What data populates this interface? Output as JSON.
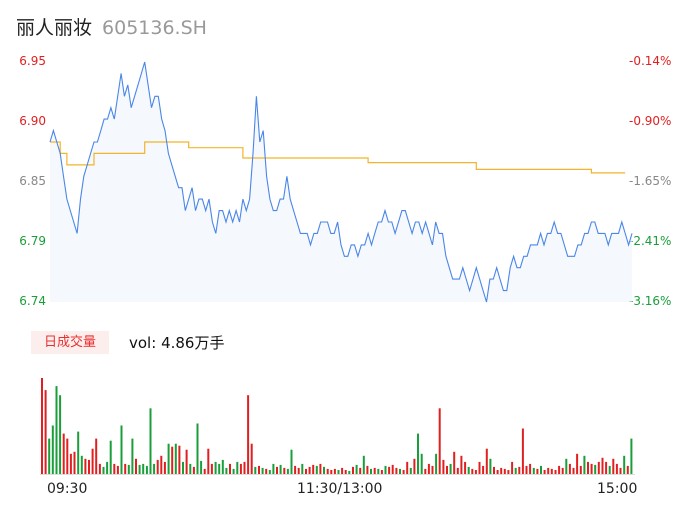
{
  "header": {
    "name": "丽人丽妆",
    "code": "605136.SH"
  },
  "volume_tab": {
    "label": "日成交量",
    "vol_label": "vol:",
    "vol_value": "4.86万手"
  },
  "colors": {
    "price_line": "#4a86e8",
    "avg_line": "#f2b42a",
    "up": "#e02020",
    "down": "#1a9e3a",
    "flat": "#888888"
  },
  "chart_data": {
    "type": "line",
    "y_ticks_left": [
      "6.95",
      "6.90",
      "6.85",
      "6.79",
      "6.74"
    ],
    "y_ticks_right": [
      "-0.14%",
      "-0.90%",
      "-1.65%",
      "-2.41%",
      "-3.16%"
    ],
    "x_ticks": [
      "09:30",
      "11:30/13:00",
      "15:00"
    ],
    "ylim": [
      6.74,
      6.95
    ],
    "price": [
      6.88,
      6.89,
      6.88,
      6.87,
      6.85,
      6.83,
      6.82,
      6.81,
      6.8,
      6.83,
      6.85,
      6.86,
      6.87,
      6.88,
      6.88,
      6.89,
      6.9,
      6.9,
      6.91,
      6.9,
      6.92,
      6.94,
      6.92,
      6.93,
      6.91,
      6.92,
      6.93,
      6.94,
      6.95,
      6.93,
      6.91,
      6.92,
      6.92,
      6.9,
      6.89,
      6.87,
      6.86,
      6.85,
      6.84,
      6.84,
      6.82,
      6.83,
      6.84,
      6.82,
      6.83,
      6.83,
      6.82,
      6.83,
      6.81,
      6.8,
      6.82,
      6.82,
      6.81,
      6.82,
      6.81,
      6.82,
      6.81,
      6.83,
      6.82,
      6.83,
      6.87,
      6.92,
      6.88,
      6.89,
      6.85,
      6.83,
      6.82,
      6.82,
      6.83,
      6.83,
      6.85,
      6.83,
      6.82,
      6.81,
      6.8,
      6.8,
      6.8,
      6.79,
      6.8,
      6.8,
      6.81,
      6.81,
      6.81,
      6.8,
      6.8,
      6.81,
      6.79,
      6.78,
      6.78,
      6.79,
      6.79,
      6.78,
      6.79,
      6.79,
      6.8,
      6.79,
      6.8,
      6.81,
      6.81,
      6.82,
      6.81,
      6.81,
      6.8,
      6.81,
      6.82,
      6.82,
      6.81,
      6.8,
      6.81,
      6.81,
      6.8,
      6.81,
      6.8,
      6.79,
      6.81,
      6.8,
      6.8,
      6.78,
      6.77,
      6.76,
      6.76,
      6.76,
      6.77,
      6.76,
      6.75,
      6.76,
      6.77,
      6.76,
      6.75,
      6.74,
      6.76,
      6.76,
      6.77,
      6.76,
      6.75,
      6.75,
      6.77,
      6.78,
      6.77,
      6.77,
      6.78,
      6.78,
      6.79,
      6.79,
      6.79,
      6.8,
      6.79,
      6.8,
      6.8,
      6.81,
      6.8,
      6.8,
      6.79,
      6.78,
      6.78,
      6.78,
      6.79,
      6.79,
      6.8,
      6.8,
      6.81,
      6.81,
      6.8,
      6.8,
      6.8,
      6.79,
      6.8,
      6.8,
      6.8,
      6.81,
      6.8,
      6.79,
      6.8
    ],
    "avg_steps": [
      {
        "from": 0,
        "to": 3,
        "value": 6.88
      },
      {
        "from": 3,
        "to": 5,
        "value": 6.87
      },
      {
        "from": 5,
        "to": 13,
        "value": 6.86
      },
      {
        "from": 13,
        "to": 19,
        "value": 6.87
      },
      {
        "from": 19,
        "to": 28,
        "value": 6.87
      },
      {
        "from": 28,
        "to": 41,
        "value": 6.88
      },
      {
        "from": 41,
        "to": 57,
        "value": 6.875
      },
      {
        "from": 57,
        "to": 67,
        "value": 6.866
      },
      {
        "from": 67,
        "to": 94,
        "value": 6.866
      },
      {
        "from": 94,
        "to": 126,
        "value": 6.862
      },
      {
        "from": 126,
        "to": 160,
        "value": 6.856
      },
      {
        "from": 160,
        "to": 170,
        "value": 6.853
      }
    ],
    "volume": [
      {
        "v": 95,
        "c": "up"
      },
      {
        "v": 83,
        "c": "up"
      },
      {
        "v": 35,
        "c": "down"
      },
      {
        "v": 48,
        "c": "down"
      },
      {
        "v": 87,
        "c": "down"
      },
      {
        "v": 78,
        "c": "down"
      },
      {
        "v": 40,
        "c": "up"
      },
      {
        "v": 35,
        "c": "up"
      },
      {
        "v": 20,
        "c": "up"
      },
      {
        "v": 22,
        "c": "up"
      },
      {
        "v": 42,
        "c": "down"
      },
      {
        "v": 18,
        "c": "down"
      },
      {
        "v": 15,
        "c": "up"
      },
      {
        "v": 14,
        "c": "up"
      },
      {
        "v": 25,
        "c": "up"
      },
      {
        "v": 35,
        "c": "up"
      },
      {
        "v": 10,
        "c": "up"
      },
      {
        "v": 7,
        "c": "down"
      },
      {
        "v": 12,
        "c": "down"
      },
      {
        "v": 33,
        "c": "down"
      },
      {
        "v": 10,
        "c": "up"
      },
      {
        "v": 8,
        "c": "up"
      },
      {
        "v": 48,
        "c": "down"
      },
      {
        "v": 10,
        "c": "up"
      },
      {
        "v": 9,
        "c": "down"
      },
      {
        "v": 35,
        "c": "down"
      },
      {
        "v": 15,
        "c": "up"
      },
      {
        "v": 9,
        "c": "down"
      },
      {
        "v": 10,
        "c": "down"
      },
      {
        "v": 8,
        "c": "down"
      },
      {
        "v": 65,
        "c": "down"
      },
      {
        "v": 10,
        "c": "down"
      },
      {
        "v": 14,
        "c": "up"
      },
      {
        "v": 18,
        "c": "up"
      },
      {
        "v": 12,
        "c": "up"
      },
      {
        "v": 30,
        "c": "down"
      },
      {
        "v": 27,
        "c": "up"
      },
      {
        "v": 30,
        "c": "down"
      },
      {
        "v": 28,
        "c": "up"
      },
      {
        "v": 12,
        "c": "down"
      },
      {
        "v": 24,
        "c": "up"
      },
      {
        "v": 10,
        "c": "down"
      },
      {
        "v": 7,
        "c": "up"
      },
      {
        "v": 50,
        "c": "down"
      },
      {
        "v": 13,
        "c": "down"
      },
      {
        "v": 5,
        "c": "up"
      },
      {
        "v": 25,
        "c": "up"
      },
      {
        "v": 10,
        "c": "up"
      },
      {
        "v": 12,
        "c": "down"
      },
      {
        "v": 10,
        "c": "down"
      },
      {
        "v": 14,
        "c": "down"
      },
      {
        "v": 6,
        "c": "down"
      },
      {
        "v": 10,
        "c": "up"
      },
      {
        "v": 5,
        "c": "down"
      },
      {
        "v": 12,
        "c": "down"
      },
      {
        "v": 10,
        "c": "up"
      },
      {
        "v": 12,
        "c": "up"
      },
      {
        "v": 78,
        "c": "up"
      },
      {
        "v": 30,
        "c": "up"
      },
      {
        "v": 7,
        "c": "down"
      },
      {
        "v": 8,
        "c": "up"
      },
      {
        "v": 6,
        "c": "down"
      },
      {
        "v": 5,
        "c": "up"
      },
      {
        "v": 4,
        "c": "down"
      },
      {
        "v": 10,
        "c": "down"
      },
      {
        "v": 7,
        "c": "up"
      },
      {
        "v": 9,
        "c": "down"
      },
      {
        "v": 6,
        "c": "up"
      },
      {
        "v": 5,
        "c": "down"
      },
      {
        "v": 24,
        "c": "down"
      },
      {
        "v": 8,
        "c": "up"
      },
      {
        "v": 6,
        "c": "up"
      },
      {
        "v": 10,
        "c": "down"
      },
      {
        "v": 5,
        "c": "up"
      },
      {
        "v": 7,
        "c": "up"
      },
      {
        "v": 9,
        "c": "up"
      },
      {
        "v": 8,
        "c": "down"
      },
      {
        "v": 10,
        "c": "up"
      },
      {
        "v": 7,
        "c": "down"
      },
      {
        "v": 5,
        "c": "up"
      },
      {
        "v": 4,
        "c": "up"
      },
      {
        "v": 5,
        "c": "up"
      },
      {
        "v": 4,
        "c": "down"
      },
      {
        "v": 6,
        "c": "up"
      },
      {
        "v": 4,
        "c": "up"
      },
      {
        "v": 3,
        "c": "down"
      },
      {
        "v": 7,
        "c": "up"
      },
      {
        "v": 9,
        "c": "down"
      },
      {
        "v": 6,
        "c": "up"
      },
      {
        "v": 18,
        "c": "down"
      },
      {
        "v": 8,
        "c": "up"
      },
      {
        "v": 5,
        "c": "down"
      },
      {
        "v": 6,
        "c": "up"
      },
      {
        "v": 5,
        "c": "down"
      },
      {
        "v": 4,
        "c": "up"
      },
      {
        "v": 8,
        "c": "down"
      },
      {
        "v": 7,
        "c": "up"
      },
      {
        "v": 9,
        "c": "up"
      },
      {
        "v": 6,
        "c": "up"
      },
      {
        "v": 5,
        "c": "down"
      },
      {
        "v": 4,
        "c": "up"
      },
      {
        "v": 12,
        "c": "up"
      },
      {
        "v": 6,
        "c": "down"
      },
      {
        "v": 15,
        "c": "up"
      },
      {
        "v": 40,
        "c": "down"
      },
      {
        "v": 20,
        "c": "down"
      },
      {
        "v": 5,
        "c": "up"
      },
      {
        "v": 10,
        "c": "up"
      },
      {
        "v": 8,
        "c": "up"
      },
      {
        "v": 20,
        "c": "down"
      },
      {
        "v": 65,
        "c": "up"
      },
      {
        "v": 14,
        "c": "up"
      },
      {
        "v": 8,
        "c": "up"
      },
      {
        "v": 10,
        "c": "down"
      },
      {
        "v": 22,
        "c": "up"
      },
      {
        "v": 6,
        "c": "up"
      },
      {
        "v": 18,
        "c": "up"
      },
      {
        "v": 12,
        "c": "up"
      },
      {
        "v": 7,
        "c": "down"
      },
      {
        "v": 5,
        "c": "up"
      },
      {
        "v": 4,
        "c": "up"
      },
      {
        "v": 12,
        "c": "up"
      },
      {
        "v": 8,
        "c": "up"
      },
      {
        "v": 25,
        "c": "up"
      },
      {
        "v": 15,
        "c": "down"
      },
      {
        "v": 7,
        "c": "up"
      },
      {
        "v": 4,
        "c": "up"
      },
      {
        "v": 6,
        "c": "up"
      },
      {
        "v": 5,
        "c": "up"
      },
      {
        "v": 4,
        "c": "up"
      },
      {
        "v": 12,
        "c": "up"
      },
      {
        "v": 6,
        "c": "down"
      },
      {
        "v": 7,
        "c": "up"
      },
      {
        "v": 45,
        "c": "up"
      },
      {
        "v": 8,
        "c": "up"
      },
      {
        "v": 10,
        "c": "up"
      },
      {
        "v": 6,
        "c": "down"
      },
      {
        "v": 5,
        "c": "up"
      },
      {
        "v": 8,
        "c": "down"
      },
      {
        "v": 4,
        "c": "up"
      },
      {
        "v": 6,
        "c": "up"
      },
      {
        "v": 5,
        "c": "up"
      },
      {
        "v": 4,
        "c": "up"
      },
      {
        "v": 8,
        "c": "up"
      },
      {
        "v": 6,
        "c": "up"
      },
      {
        "v": 15,
        "c": "down"
      },
      {
        "v": 10,
        "c": "up"
      },
      {
        "v": 6,
        "c": "up"
      },
      {
        "v": 20,
        "c": "up"
      },
      {
        "v": 8,
        "c": "up"
      },
      {
        "v": 18,
        "c": "down"
      },
      {
        "v": 12,
        "c": "up"
      },
      {
        "v": 10,
        "c": "up"
      },
      {
        "v": 9,
        "c": "down"
      },
      {
        "v": 12,
        "c": "up"
      },
      {
        "v": 16,
        "c": "up"
      },
      {
        "v": 12,
        "c": "up"
      },
      {
        "v": 8,
        "c": "down"
      },
      {
        "v": 15,
        "c": "up"
      },
      {
        "v": 10,
        "c": "up"
      },
      {
        "v": 6,
        "c": "up"
      },
      {
        "v": 18,
        "c": "down"
      },
      {
        "v": 8,
        "c": "up"
      },
      {
        "v": 35,
        "c": "down"
      }
    ]
  }
}
